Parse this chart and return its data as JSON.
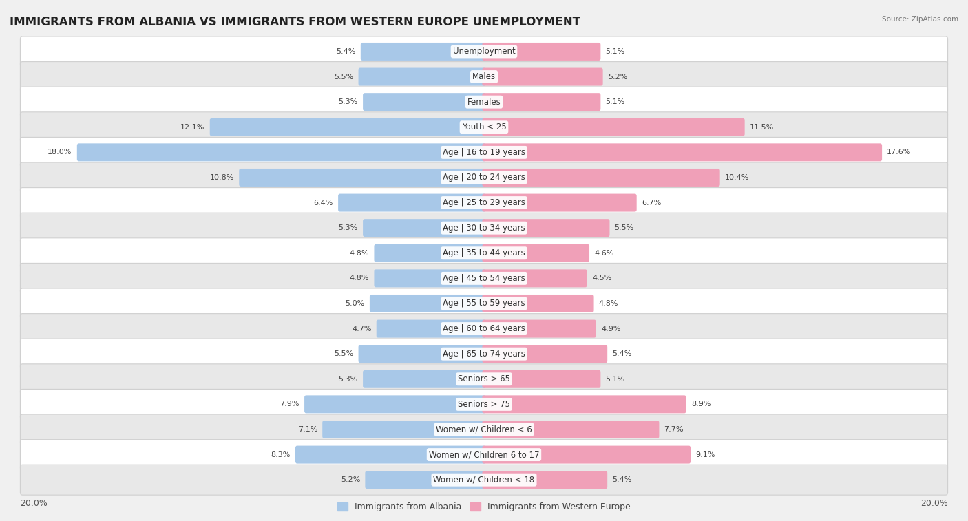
{
  "title": "IMMIGRANTS FROM ALBANIA VS IMMIGRANTS FROM WESTERN EUROPE UNEMPLOYMENT",
  "source": "Source: ZipAtlas.com",
  "categories": [
    "Unemployment",
    "Males",
    "Females",
    "Youth < 25",
    "Age | 16 to 19 years",
    "Age | 20 to 24 years",
    "Age | 25 to 29 years",
    "Age | 30 to 34 years",
    "Age | 35 to 44 years",
    "Age | 45 to 54 years",
    "Age | 55 to 59 years",
    "Age | 60 to 64 years",
    "Age | 65 to 74 years",
    "Seniors > 65",
    "Seniors > 75",
    "Women w/ Children < 6",
    "Women w/ Children 6 to 17",
    "Women w/ Children < 18"
  ],
  "albania_values": [
    5.4,
    5.5,
    5.3,
    12.1,
    18.0,
    10.8,
    6.4,
    5.3,
    4.8,
    4.8,
    5.0,
    4.7,
    5.5,
    5.3,
    7.9,
    7.1,
    8.3,
    5.2
  ],
  "western_europe_values": [
    5.1,
    5.2,
    5.1,
    11.5,
    17.6,
    10.4,
    6.7,
    5.5,
    4.6,
    4.5,
    4.8,
    4.9,
    5.4,
    5.1,
    8.9,
    7.7,
    9.1,
    5.4
  ],
  "albania_color": "#a8c8e8",
  "western_europe_color": "#f0a0b8",
  "albania_label": "Immigrants from Albania",
  "western_europe_label": "Immigrants from Western Europe",
  "axis_limit": 20.0,
  "bg_color": "#f0f0f0",
  "row_bg_light": "#ffffff",
  "row_bg_dark": "#e8e8e8",
  "title_fontsize": 12,
  "label_fontsize": 8.5,
  "value_fontsize": 8,
  "legend_fontsize": 9,
  "axis_label_fontsize": 9
}
